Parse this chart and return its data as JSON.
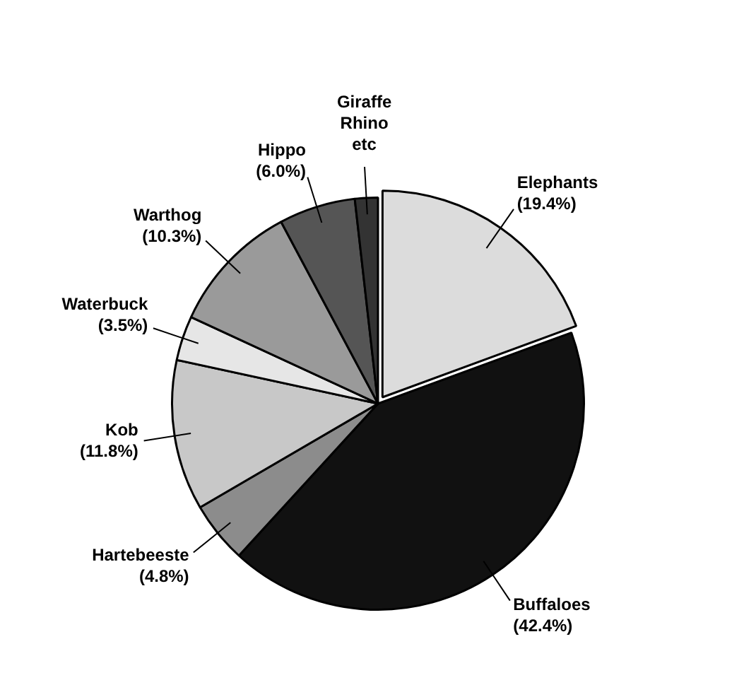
{
  "chart_data": {
    "type": "pie",
    "categories": [
      "Elephants",
      "Buffaloes",
      "Hartebeeste",
      "Kob",
      "Waterbuck",
      "Warthog",
      "Hippo",
      "Giraffe Rhino etc"
    ],
    "values": [
      19.4,
      42.4,
      4.8,
      11.8,
      3.5,
      10.3,
      6.0,
      1.8
    ],
    "value_labels": [
      "(19.4%)",
      "(42.4%)",
      "(4.8%)",
      "(11.8%)",
      "(3.5%)",
      "(10.3%)",
      "(6.0%)",
      null
    ],
    "colors": [
      "#dcdcdc",
      "#111111",
      "#8c8c8c",
      "#c8c8c8",
      "#e6e6e6",
      "#9a9a9a",
      "#555555",
      "#333333"
    ],
    "legend": false
  }
}
